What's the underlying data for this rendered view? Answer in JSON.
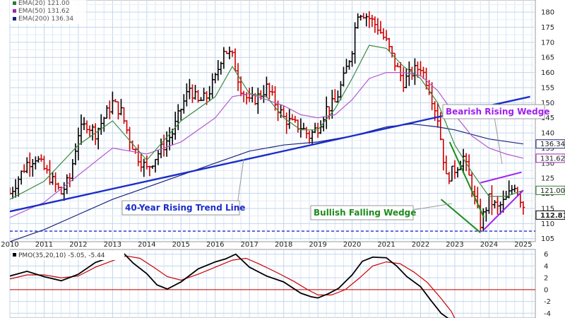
{
  "chart_data": [
    {
      "type": "ohlc",
      "x_axis": {
        "start": 2010,
        "end": 2025,
        "labels": [
          "2010",
          "2011",
          "2012",
          "2013",
          "2014",
          "2015",
          "2016",
          "2017",
          "2018",
          "2019",
          "2020",
          "2021",
          "2022",
          "2023",
          "2024",
          "2025"
        ]
      },
      "y_axis": {
        "min": 104,
        "max": 184,
        "ticks": [
          105,
          110,
          115,
          120,
          125,
          130,
          135,
          140,
          145,
          150,
          155,
          160,
          165,
          170,
          175,
          180
        ]
      },
      "legend": [
        {
          "label": "EMA(20) 121.00",
          "color": "#2e7d32"
        },
        {
          "label": "EMA(50) 131.62",
          "color": "#9c27b0"
        },
        {
          "label": "EMA(200) 136.34",
          "color": "#1a237e"
        }
      ],
      "colors": {
        "up": "#000000",
        "down": "#cc0000",
        "trendline": "#1b2dc9",
        "wedge_bearish": "#a020f0",
        "wedge_bullish": "#1e8c1e",
        "support": "#1b2dc9"
      },
      "last_value_badges": [
        {
          "value": 136.34,
          "label": "136.34",
          "color": "#1a237e"
        },
        {
          "value": 131.62,
          "label": "131.62",
          "color": "#9c27b0"
        },
        {
          "value": 121.0,
          "label": "121.00",
          "color": "#2e7d32"
        },
        {
          "value": 112.81,
          "label": "112.81",
          "color": "#000000"
        }
      ],
      "price_series": [
        [
          2010.0,
          120
        ],
        [
          2010.25,
          125
        ],
        [
          2010.5,
          130
        ],
        [
          2010.75,
          132
        ],
        [
          2011.0,
          128
        ],
        [
          2011.25,
          124
        ],
        [
          2011.5,
          120
        ],
        [
          2011.75,
          125
        ],
        [
          2012.0,
          140
        ],
        [
          2012.25,
          143
        ],
        [
          2012.5,
          140
        ],
        [
          2012.75,
          145
        ],
        [
          2013.0,
          150
        ],
        [
          2013.25,
          147
        ],
        [
          2013.5,
          138
        ],
        [
          2013.75,
          132
        ],
        [
          2014.0,
          128
        ],
        [
          2014.25,
          132
        ],
        [
          2014.5,
          136
        ],
        [
          2014.75,
          140
        ],
        [
          2015.0,
          148
        ],
        [
          2015.25,
          155
        ],
        [
          2015.5,
          150
        ],
        [
          2015.75,
          152
        ],
        [
          2016.0,
          158
        ],
        [
          2016.25,
          168
        ],
        [
          2016.5,
          165
        ],
        [
          2016.75,
          155
        ],
        [
          2017.0,
          150
        ],
        [
          2017.25,
          152
        ],
        [
          2017.5,
          155
        ],
        [
          2017.75,
          150
        ],
        [
          2018.0,
          145
        ],
        [
          2018.25,
          143
        ],
        [
          2018.5,
          142
        ],
        [
          2018.75,
          139
        ],
        [
          2019.0,
          142
        ],
        [
          2019.25,
          148
        ],
        [
          2019.5,
          150
        ],
        [
          2019.75,
          158
        ],
        [
          2020.0,
          168
        ],
        [
          2020.15,
          180
        ],
        [
          2020.3,
          180
        ],
        [
          2020.5,
          178
        ],
        [
          2020.75,
          175
        ],
        [
          2021.0,
          170
        ],
        [
          2021.25,
          163
        ],
        [
          2021.5,
          157
        ],
        [
          2021.75,
          160
        ],
        [
          2022.0,
          162
        ],
        [
          2022.25,
          155
        ],
        [
          2022.5,
          145
        ],
        [
          2022.75,
          125
        ],
        [
          2023.0,
          128
        ],
        [
          2023.25,
          132
        ],
        [
          2023.5,
          122
        ],
        [
          2023.75,
          110
        ],
        [
          2024.0,
          118
        ],
        [
          2024.25,
          115
        ],
        [
          2024.5,
          118
        ],
        [
          2024.75,
          123
        ],
        [
          2025.0,
          116
        ],
        [
          2025.08,
          112.81
        ]
      ],
      "ema20": [
        [
          2010.0,
          118
        ],
        [
          2011.0,
          124
        ],
        [
          2012.0,
          136
        ],
        [
          2013.0,
          144
        ],
        [
          2014.0,
          131
        ],
        [
          2015.0,
          144
        ],
        [
          2016.0,
          152
        ],
        [
          2016.5,
          162
        ],
        [
          2017.0,
          153
        ],
        [
          2017.5,
          152
        ],
        [
          2018.0,
          145
        ],
        [
          2018.5,
          141
        ],
        [
          2019.0,
          141
        ],
        [
          2019.5,
          148
        ],
        [
          2020.0,
          158
        ],
        [
          2020.5,
          169
        ],
        [
          2021.0,
          168
        ],
        [
          2021.5,
          162
        ],
        [
          2022.0,
          158
        ],
        [
          2022.5,
          150
        ],
        [
          2023.0,
          136
        ],
        [
          2023.5,
          127
        ],
        [
          2024.0,
          119
        ],
        [
          2024.5,
          119
        ],
        [
          2025.0,
          121
        ]
      ],
      "ema50": [
        [
          2010.0,
          112
        ],
        [
          2011.0,
          117
        ],
        [
          2012.0,
          126
        ],
        [
          2013.0,
          135
        ],
        [
          2014.0,
          133
        ],
        [
          2015.0,
          137
        ],
        [
          2016.0,
          145
        ],
        [
          2016.5,
          152
        ],
        [
          2017.0,
          153
        ],
        [
          2017.5,
          151
        ],
        [
          2018.0,
          149
        ],
        [
          2018.5,
          146
        ],
        [
          2019.0,
          145
        ],
        [
          2019.5,
          146
        ],
        [
          2020.0,
          151
        ],
        [
          2020.5,
          158
        ],
        [
          2021.0,
          160
        ],
        [
          2021.5,
          160
        ],
        [
          2022.0,
          159
        ],
        [
          2022.5,
          154
        ],
        [
          2023.0,
          146
        ],
        [
          2023.5,
          139
        ],
        [
          2024.0,
          135
        ],
        [
          2024.5,
          133
        ],
        [
          2025.0,
          131.62
        ]
      ],
      "ema200": [
        [
          2010.0,
          104
        ],
        [
          2011.0,
          108
        ],
        [
          2012.0,
          113
        ],
        [
          2013.0,
          118
        ],
        [
          2014.0,
          122
        ],
        [
          2015.0,
          126
        ],
        [
          2016.0,
          130
        ],
        [
          2017.0,
          134
        ],
        [
          2018.0,
          136
        ],
        [
          2019.0,
          137
        ],
        [
          2020.0,
          139
        ],
        [
          2021.0,
          142
        ],
        [
          2021.75,
          143
        ],
        [
          2022.5,
          142
        ],
        [
          2023.0,
          141
        ],
        [
          2024.0,
          138
        ],
        [
          2025.0,
          136.34
        ]
      ],
      "annotations": [
        {
          "text": "40-Year Rising Trend Line",
          "color": "#1b2dc9",
          "border": "#888888"
        },
        {
          "text": "Bearish Rising Wedge",
          "color": "#a020f0",
          "border": "#888888"
        },
        {
          "text": "Bullish Falling Wedge",
          "color": "#1e8c1e",
          "border": "#888888"
        }
      ],
      "trendline": {
        "from": [
          2010.0,
          114
        ],
        "to": [
          2025.2,
          152
        ]
      },
      "support_level": 107.5,
      "falling_wedge": {
        "upper": [
          [
            2022.85,
            137
          ],
          [
            2023.85,
            112
          ]
        ],
        "lower": [
          [
            2022.6,
            118
          ],
          [
            2023.75,
            107
          ]
        ]
      },
      "rising_wedge": {
        "upper": [
          [
            2023.75,
            123.5
          ],
          [
            2024.95,
            127
          ]
        ],
        "lower": [
          [
            2023.85,
            108
          ],
          [
            2025.0,
            121
          ]
        ]
      }
    },
    {
      "type": "line",
      "title": "PMO(35,20,10) -5.05, -5.44",
      "x_axis": {
        "start": 2010,
        "end": 2025
      },
      "y_axis": {
        "min": -4.8,
        "max": 6.8,
        "ticks": [
          -4,
          -2,
          0,
          2,
          4,
          6
        ]
      },
      "colors": {
        "pmo": "#000000",
        "signal": "#cc0000",
        "zero": "#cc0000"
      },
      "pmo": [
        [
          2010.0,
          2.3
        ],
        [
          2010.5,
          3.1
        ],
        [
          2011.0,
          2.2
        ],
        [
          2011.5,
          1.5
        ],
        [
          2012.0,
          2.6
        ],
        [
          2012.5,
          4.6
        ],
        [
          2013.0,
          5.6
        ],
        [
          2013.3,
          6.3
        ],
        [
          2013.6,
          4.5
        ],
        [
          2014.0,
          2.7
        ],
        [
          2014.3,
          0.8
        ],
        [
          2014.6,
          0.1
        ],
        [
          2015.0,
          1.3
        ],
        [
          2015.5,
          3.5
        ],
        [
          2016.0,
          4.7
        ],
        [
          2016.3,
          5.2
        ],
        [
          2016.6,
          6.0
        ],
        [
          2017.0,
          3.8
        ],
        [
          2017.5,
          2.3
        ],
        [
          2018.0,
          1.3
        ],
        [
          2018.5,
          -0.6
        ],
        [
          2018.8,
          -1.2
        ],
        [
          2019.0,
          -1.4
        ],
        [
          2019.3,
          -0.7
        ],
        [
          2019.6,
          0.2
        ],
        [
          2020.0,
          2.5
        ],
        [
          2020.3,
          4.8
        ],
        [
          2020.6,
          5.5
        ],
        [
          2021.0,
          5.4
        ],
        [
          2021.3,
          4.0
        ],
        [
          2021.6,
          2.2
        ],
        [
          2022.0,
          0.5
        ],
        [
          2022.3,
          -1.8
        ],
        [
          2022.6,
          -4.0
        ],
        [
          2022.85,
          -5.05
        ]
      ],
      "signal": [
        [
          2010.0,
          1.8
        ],
        [
          2010.5,
          2.5
        ],
        [
          2011.0,
          2.5
        ],
        [
          2011.5,
          2.0
        ],
        [
          2012.0,
          2.3
        ],
        [
          2012.5,
          3.8
        ],
        [
          2013.0,
          4.9
        ],
        [
          2013.4,
          5.7
        ],
        [
          2013.8,
          5.3
        ],
        [
          2014.2,
          3.8
        ],
        [
          2014.6,
          2.2
        ],
        [
          2015.0,
          1.6
        ],
        [
          2015.5,
          2.6
        ],
        [
          2016.0,
          3.8
        ],
        [
          2016.5,
          5.0
        ],
        [
          2016.9,
          5.3
        ],
        [
          2017.3,
          4.3
        ],
        [
          2017.8,
          2.9
        ],
        [
          2018.3,
          1.4
        ],
        [
          2018.7,
          0.0
        ],
        [
          2019.0,
          -0.9
        ],
        [
          2019.4,
          -0.9
        ],
        [
          2019.8,
          0.0
        ],
        [
          2020.2,
          1.9
        ],
        [
          2020.6,
          4.0
        ],
        [
          2021.0,
          4.7
        ],
        [
          2021.4,
          4.4
        ],
        [
          2021.8,
          3.0
        ],
        [
          2022.2,
          1.2
        ],
        [
          2022.6,
          -1.5
        ],
        [
          2022.9,
          -3.7
        ],
        [
          2023.05,
          -5.44
        ]
      ]
    }
  ]
}
